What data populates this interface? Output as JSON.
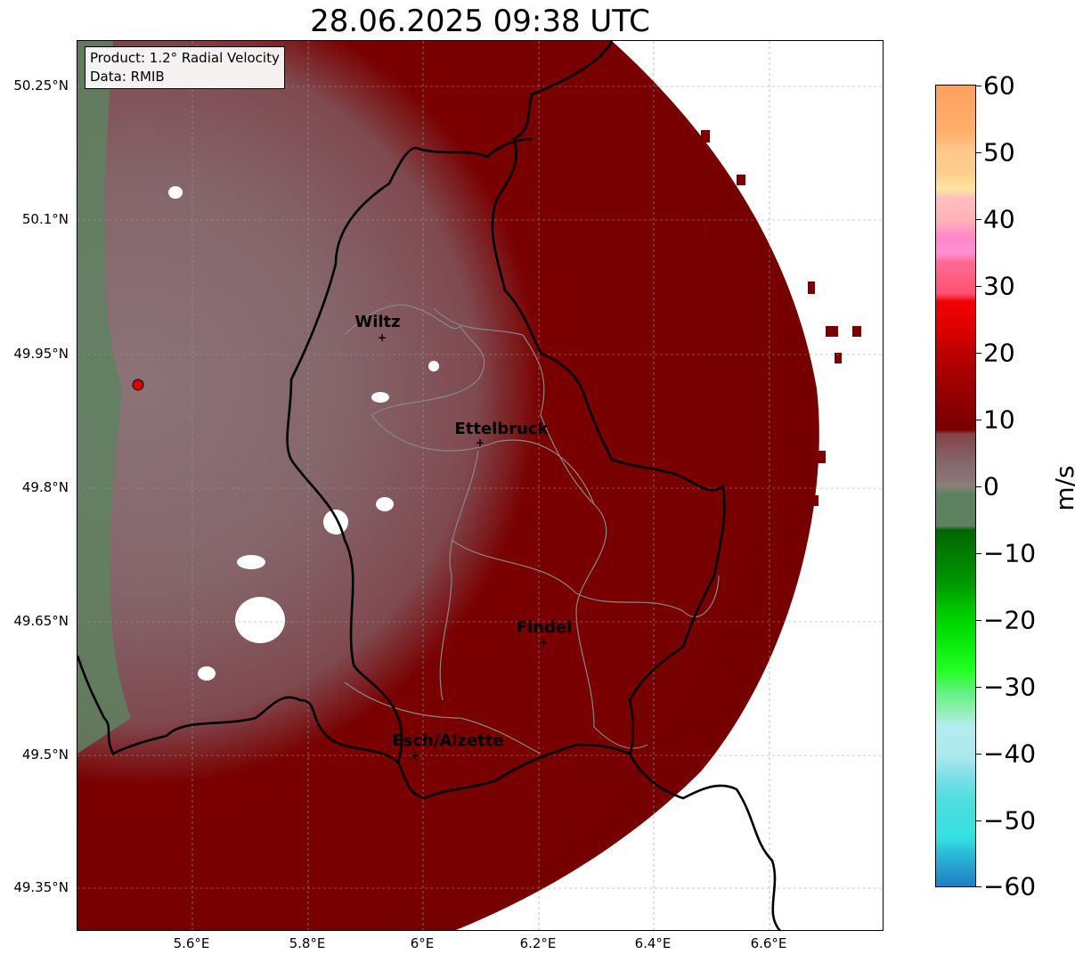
{
  "title": "28.06.2025 09:38 UTC",
  "info": {
    "product": "Product: 1.2° Radial Velocity",
    "data": "Data: RMIB"
  },
  "lat_ticks": [
    "50.25°N",
    "50.1°N",
    "49.95°N",
    "49.8°N",
    "49.65°N",
    "49.5°N",
    "49.35°N"
  ],
  "lon_ticks": [
    "5.6°E",
    "5.8°E",
    "6°E",
    "6.2°E",
    "6.4°E",
    "6.6°E"
  ],
  "cities": [
    {
      "name": "Wiltz"
    },
    {
      "name": "Ettelbruck"
    },
    {
      "name": "Findel"
    },
    {
      "name": "Esch/Alzette"
    }
  ],
  "colorbar": {
    "label": "m/s",
    "ticks": [
      "60",
      "50",
      "40",
      "30",
      "20",
      "10",
      "0",
      "−10",
      "−20",
      "−30",
      "−40",
      "−50",
      "−60"
    ],
    "range": [
      -60,
      60
    ]
  },
  "colors": {
    "approaching_far": "#1f7fc4",
    "approaching_cyan": "#34dfe0",
    "approaching_green": "#00e000",
    "dark_green": "#006400",
    "near_zero_green": "#5e8260",
    "near_zero_grey": "#8a7377",
    "receding_light": "#84444a",
    "receding_dark": "#7a0000",
    "receding_red": "#f20000",
    "pink": "#ff85c8",
    "peach": "#fecf8d",
    "orange": "#ffa061"
  }
}
